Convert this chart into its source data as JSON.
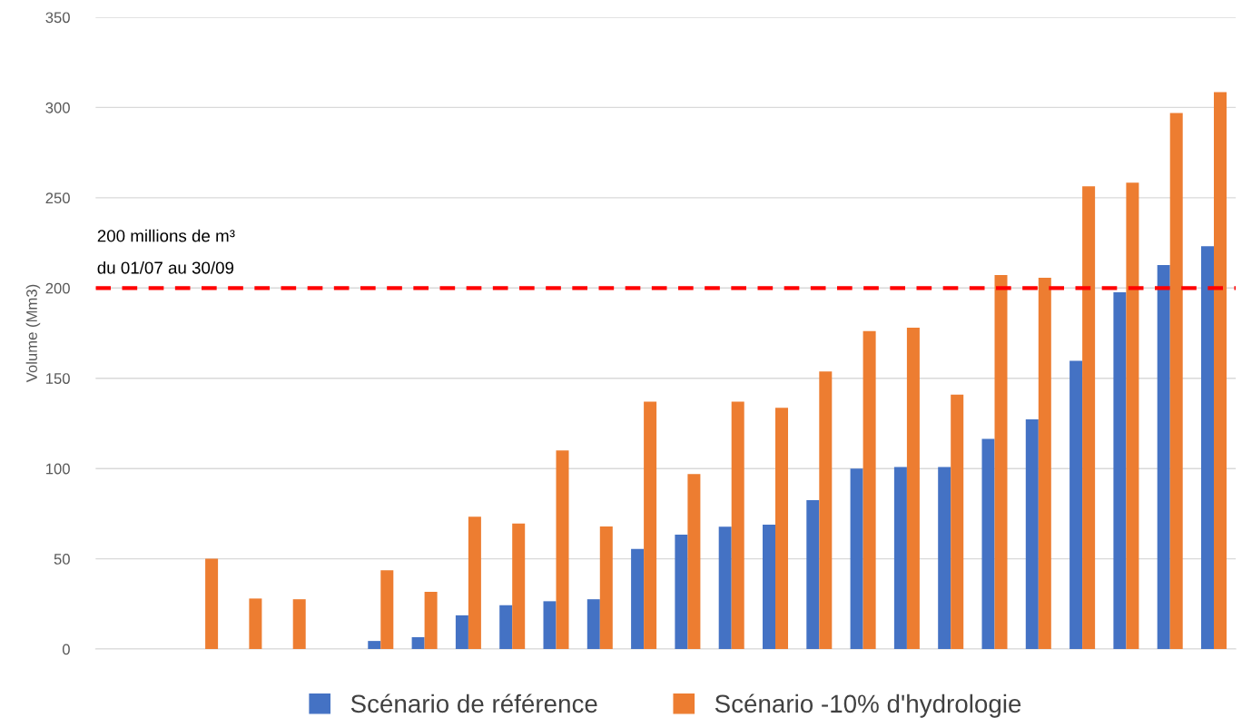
{
  "chart_data": {
    "type": "bar",
    "ylabel": "Volume (Mm3)",
    "categories": [
      null,
      null,
      null,
      null,
      null,
      null,
      null,
      null,
      null,
      null,
      null,
      null,
      null,
      null,
      null,
      null,
      null,
      null,
      null,
      null,
      null,
      null,
      null,
      null,
      null,
      null
    ],
    "series": [
      {
        "name": "Scénario de référence",
        "color": "#4472c4",
        "values": [
          null,
          null,
          null,
          null,
          null,
          null,
          4.5,
          6.6,
          18.7,
          24.3,
          26.5,
          27.6,
          55.5,
          63.4,
          67.8,
          68.9,
          82.5,
          100,
          100.8,
          100.8,
          116.4,
          127.2,
          159.7,
          197.7,
          212.7,
          223.2
        ]
      },
      {
        "name": "Scénario -10% d'hydrologie",
        "color": "#ed7d31",
        "values": [
          null,
          null,
          50,
          28,
          27.6,
          null,
          43.6,
          31.7,
          73.3,
          69.5,
          110,
          67.9,
          137,
          97,
          137,
          133.6,
          153.8,
          176.2,
          178,
          141,
          207.2,
          205.7,
          256.4,
          258.4,
          297,
          308.5
        ]
      }
    ],
    "ylim": [
      0,
      350
    ],
    "yticks": [
      0,
      50,
      100,
      150,
      200,
      250,
      300,
      350
    ],
    "grid": "y",
    "legend": "bottom",
    "ref_lines": [
      {
        "axis": "y",
        "value": 200,
        "label": "200 millions de m³\ndu 01/07 au 30/09",
        "color": "#ff0000",
        "line_style": "dashed"
      }
    ]
  }
}
